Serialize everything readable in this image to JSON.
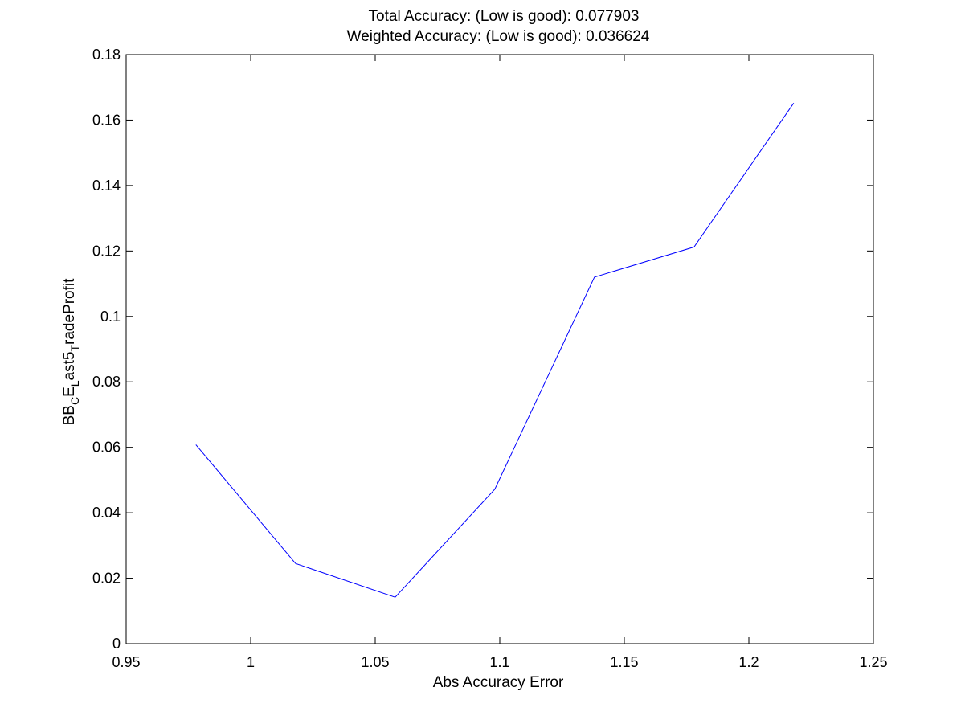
{
  "chart_data": {
    "type": "line",
    "title_lines": [
      "Total Accuracy: (Low is good): 0.077903",
      "Weighted Accuracy: (Low is good): 0.036624"
    ],
    "xlabel": "Abs Accuracy Error",
    "ylabel": {
      "parts": [
        "BB",
        "C",
        "E",
        "L",
        "ast5",
        "T",
        "radeProfit"
      ],
      "subscript_parts": [
        1,
        3,
        5
      ]
    },
    "xlim": [
      0.95,
      1.25
    ],
    "ylim": [
      0,
      0.18
    ],
    "xticks": [
      0.95,
      1,
      1.05,
      1.1,
      1.15,
      1.2,
      1.25
    ],
    "xtick_labels": [
      "0.95",
      "1",
      "1.05",
      "1.1",
      "1.15",
      "1.2",
      "1.25"
    ],
    "yticks": [
      0,
      0.02,
      0.04,
      0.06,
      0.08,
      0.1,
      0.12,
      0.14,
      0.16,
      0.18
    ],
    "ytick_labels": [
      "0",
      "0.02",
      "0.04",
      "0.06",
      "0.08",
      "0.1",
      "0.12",
      "0.14",
      "0.16",
      "0.18"
    ],
    "grid": false,
    "series": [
      {
        "color": "#0000ff",
        "x": [
          0.978,
          1.018,
          1.058,
          1.098,
          1.138,
          1.178,
          1.218
        ],
        "y": [
          0.0608,
          0.0245,
          0.0142,
          0.0472,
          0.112,
          0.1212,
          0.1652
        ]
      }
    ]
  }
}
